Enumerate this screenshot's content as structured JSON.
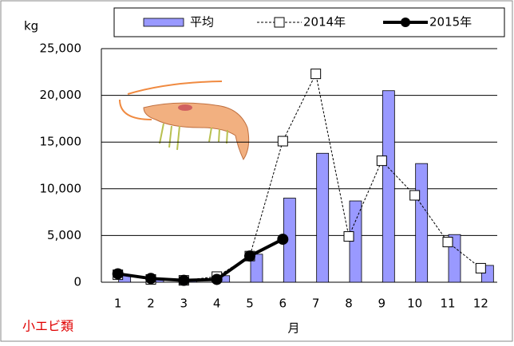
{
  "chart_data": {
    "type": "bar",
    "y_label": "kg",
    "x_label": "月",
    "annotation": "小エビ類",
    "categories": [
      "1",
      "2",
      "3",
      "4",
      "5",
      "6",
      "7",
      "8",
      "9",
      "10",
      "11",
      "12"
    ],
    "series": [
      {
        "name": "平均",
        "type": "bar",
        "color": "#9999ff",
        "values": [
          800,
          300,
          300,
          700,
          3000,
          9000,
          13800,
          8700,
          20500,
          12700,
          5100,
          1800
        ]
      },
      {
        "name": "2014年",
        "type": "line",
        "color": "#000000",
        "dashed": true,
        "marker": "square",
        "values": [
          800,
          300,
          200,
          600,
          2800,
          15100,
          22300,
          4900,
          13000,
          9300,
          4300,
          1500
        ]
      },
      {
        "name": "2015年",
        "type": "line",
        "color": "#000000",
        "dashed": false,
        "marker": "circle",
        "values": [
          900,
          400,
          200,
          300,
          2800,
          4600,
          null,
          null,
          null,
          null,
          null,
          null
        ]
      }
    ],
    "ylim": [
      0,
      25000
    ],
    "yticks": [
      0,
      {
        "value": 5000,
        "label": "5,000"
      },
      {
        "value": 10000,
        "label": "10,000"
      },
      {
        "value": 15000,
        "label": "15,000"
      },
      {
        "value": 20000,
        "label": "20,000"
      },
      {
        "value": 25000,
        "label": "25,000"
      }
    ],
    "grid": true
  }
}
